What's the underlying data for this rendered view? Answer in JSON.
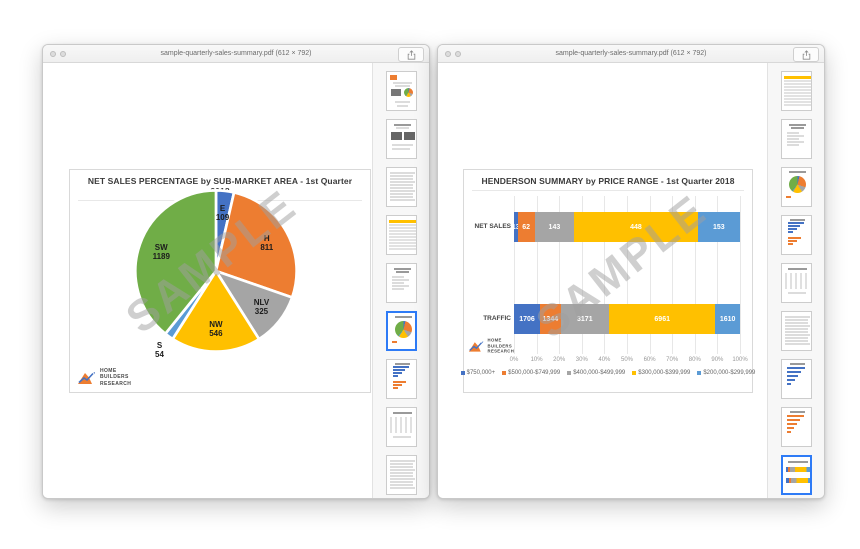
{
  "windows": [
    {
      "title": "sample-quarterly-sales-summary.pdf (612 × 792)",
      "watermark": "SAMPLE",
      "thumbnails": [
        {
          "type": "cover",
          "selected": false
        },
        {
          "type": "dark-tables",
          "selected": false
        },
        {
          "type": "text",
          "selected": false
        },
        {
          "type": "table",
          "selected": false
        },
        {
          "type": "text-list",
          "selected": false
        },
        {
          "type": "pie",
          "selected": true
        },
        {
          "type": "hbar-blue-orange",
          "selected": false
        },
        {
          "type": "table-cols",
          "selected": false
        },
        {
          "type": "text",
          "selected": false
        }
      ]
    },
    {
      "title": "sample-quarterly-sales-summary.pdf (612 × 792)",
      "watermark": "SAMPLE",
      "thumbnails": [
        {
          "type": "table",
          "selected": false
        },
        {
          "type": "text-list",
          "selected": false
        },
        {
          "type": "pie",
          "selected": false
        },
        {
          "type": "hbar-blue-orange",
          "selected": false
        },
        {
          "type": "table-cols",
          "selected": false
        },
        {
          "type": "text",
          "selected": false
        },
        {
          "type": "hbar-blue",
          "selected": false
        },
        {
          "type": "hbar-orange",
          "selected": false
        },
        {
          "type": "stacked",
          "selected": true
        }
      ]
    }
  ],
  "logo": {
    "lines": [
      "HOME",
      "BUILDERS",
      "RESEARCH"
    ]
  },
  "chart_data": [
    {
      "type": "pie",
      "title": "NET SALES PERCENTAGE by SUB-MARKET AREA - 1st Quarter 2018",
      "categories": [
        "E",
        "H",
        "NLV",
        "NW",
        "S",
        "SW"
      ],
      "values": [
        109,
        811,
        325,
        546,
        54,
        1189
      ],
      "colors": [
        "#4472C4",
        "#ED7D31",
        "#A5A5A5",
        "#FFC000",
        "#5B9BD5",
        "#70AD47"
      ],
      "legend_position": "none"
    },
    {
      "type": "bar",
      "subtype": "horizontal-stacked-100pct",
      "title": "HENDERSON SUMMARY by PRICE RANGE - 1st Quarter 2018",
      "categories": [
        "NET SALES",
        "TRAFFIC"
      ],
      "series": [
        {
          "name": "$750,000+",
          "color": "#4472C4",
          "values": [
            13,
            1706
          ]
        },
        {
          "name": "$500,000-$749,999",
          "color": "#ED7D31",
          "values": [
            62,
            1344
          ]
        },
        {
          "name": "$400,000-$499,999",
          "color": "#A5A5A5",
          "values": [
            143,
            3171
          ]
        },
        {
          "name": "$300,000-$399,999",
          "color": "#FFC000",
          "values": [
            448,
            6961
          ]
        },
        {
          "name": "$200,000-$299,999",
          "color": "#5B9BD5",
          "values": [
            153,
            1610
          ]
        }
      ],
      "x_ticks": [
        "0%",
        "10%",
        "20%",
        "30%",
        "40%",
        "50%",
        "60%",
        "70%",
        "80%",
        "90%",
        "100%"
      ],
      "xlim": [
        0,
        100
      ],
      "grid": true,
      "legend_position": "bottom"
    }
  ]
}
